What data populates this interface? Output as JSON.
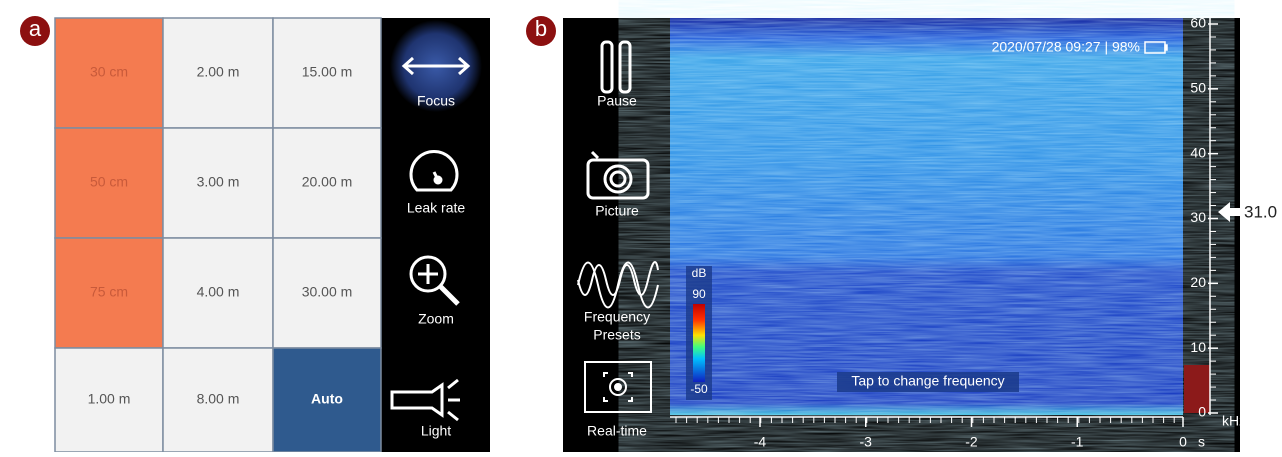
{
  "panel_a": {
    "label": "a",
    "grid": [
      [
        "30 cm",
        "2.00 m",
        "15.00 m"
      ],
      [
        "50 cm",
        "3.00 m",
        "20.00 m"
      ],
      [
        "75 cm",
        "4.00 m",
        "30.00 m"
      ],
      [
        "1.00 m",
        "8.00 m",
        "Auto"
      ]
    ],
    "menu": [
      [
        "Focus"
      ],
      [
        "Leak rate"
      ],
      [
        "Zoom"
      ],
      [
        "Light"
      ]
    ]
  },
  "panel_b": {
    "label": "b",
    "menu": [
      [
        "Pause"
      ],
      [
        "Picture"
      ],
      [
        "Frequency",
        "Presets"
      ],
      [
        "Real-time"
      ]
    ],
    "status": "2020/07/28 09:27 | 98%",
    "colorbar": {
      "unit": "dB",
      "max": "90",
      "min": "-50"
    },
    "hint": "Tap to change frequency",
    "time_axis": {
      "ticks": [
        -4,
        -3,
        -2,
        -1,
        0
      ],
      "unit": "s"
    },
    "freq_axis": {
      "ticks": [
        0,
        10,
        20,
        30,
        40,
        50,
        60
      ],
      "unit": "kHz"
    },
    "marker": {
      "value": 31,
      "label": "31.0"
    }
  }
}
